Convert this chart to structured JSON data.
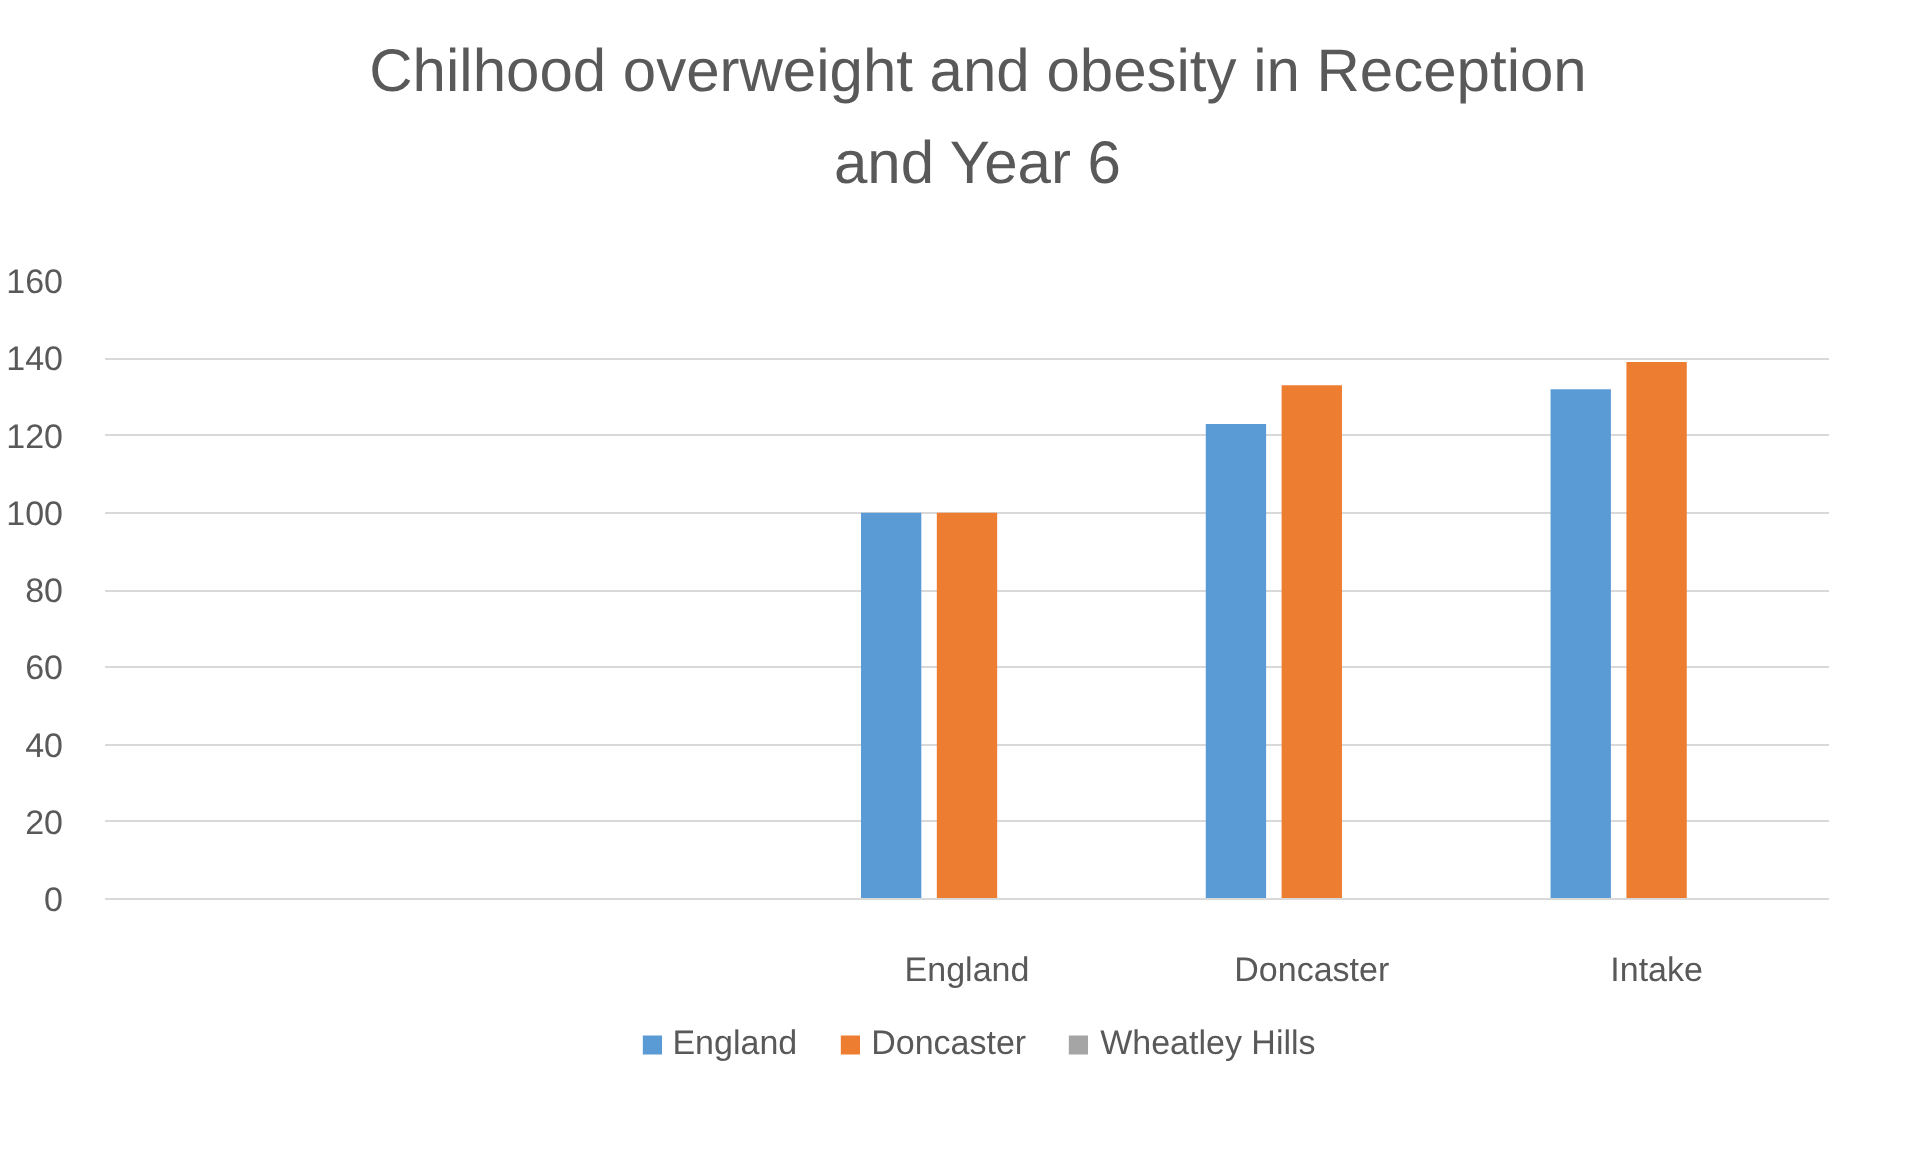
{
  "chart_data": {
    "type": "bar",
    "title": "Chilhood overweight and obesity in Reception and Year 6",
    "categories": [
      null,
      null,
      "England",
      "Doncaster",
      "Intake"
    ],
    "series": [
      {
        "name": "England",
        "color": "#5b9bd5",
        "values": [
          null,
          null,
          100,
          123,
          132
        ]
      },
      {
        "name": "Doncaster",
        "color": "#ed7d31",
        "values": [
          null,
          null,
          100,
          133,
          139
        ]
      },
      {
        "name": "Wheatley Hills",
        "color": "#a5a5a5",
        "values": [
          null,
          null,
          null,
          null,
          null
        ]
      }
    ],
    "ylim": [
      0,
      160
    ],
    "yticks": [
      0,
      20,
      40,
      60,
      80,
      100,
      120,
      140,
      160
    ],
    "grid": "y",
    "legend": "bottom"
  }
}
